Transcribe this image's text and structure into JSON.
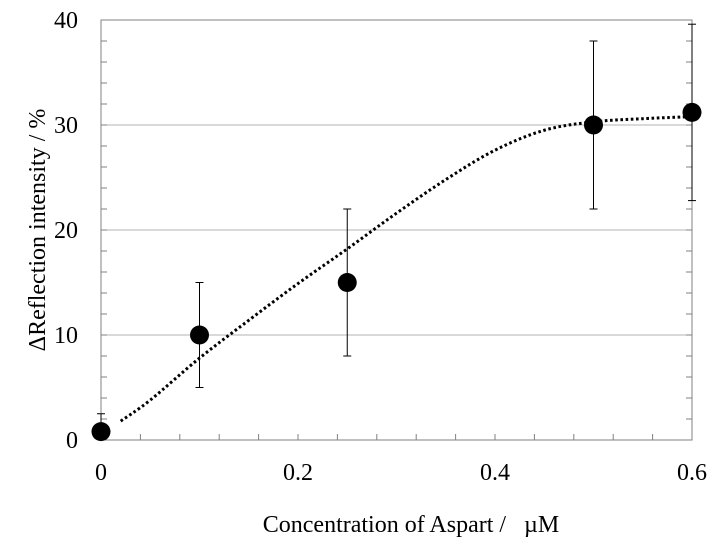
{
  "chart_data": {
    "type": "scatter",
    "xlabel": "Concentration of Aspart /   µM",
    "ylabel": "ΔReflection intensity / %",
    "xlim": [
      0,
      0.6
    ],
    "ylim": [
      0,
      40
    ],
    "x_ticks": [
      "0",
      "0.2",
      "0.4",
      "0.6"
    ],
    "y_ticks": [
      "0",
      "10",
      "20",
      "30",
      "40"
    ],
    "grid": "horizontal",
    "legend": "none",
    "series": [
      {
        "points": [
          {
            "x": 0,
            "y": 0.8,
            "err_low": 0.8,
            "err_high": 2.5
          },
          {
            "x": 0.1,
            "y": 10,
            "err_low": 5,
            "err_high": 15
          },
          {
            "x": 0.25,
            "y": 15,
            "err_low": 8,
            "err_high": 22
          },
          {
            "x": 0.5,
            "y": 30,
            "err_low": 22,
            "err_high": 38
          },
          {
            "x": 0.6,
            "y": 31.2,
            "err_low": 22.8,
            "err_high": 39.6
          }
        ]
      }
    ],
    "fit_curve": {
      "style": "dotted",
      "points": [
        {
          "x": 0.02,
          "y": 1.8
        },
        {
          "x": 0.05,
          "y": 3.8
        },
        {
          "x": 0.1,
          "y": 7.8
        },
        {
          "x": 0.15,
          "y": 11.4
        },
        {
          "x": 0.2,
          "y": 14.9
        },
        {
          "x": 0.25,
          "y": 18.2
        },
        {
          "x": 0.3,
          "y": 21.6
        },
        {
          "x": 0.35,
          "y": 24.8
        },
        {
          "x": 0.4,
          "y": 27.6
        },
        {
          "x": 0.45,
          "y": 29.5
        },
        {
          "x": 0.5,
          "y": 30.3
        },
        {
          "x": 0.55,
          "y": 30.6
        },
        {
          "x": 0.6,
          "y": 30.8
        }
      ]
    }
  }
}
